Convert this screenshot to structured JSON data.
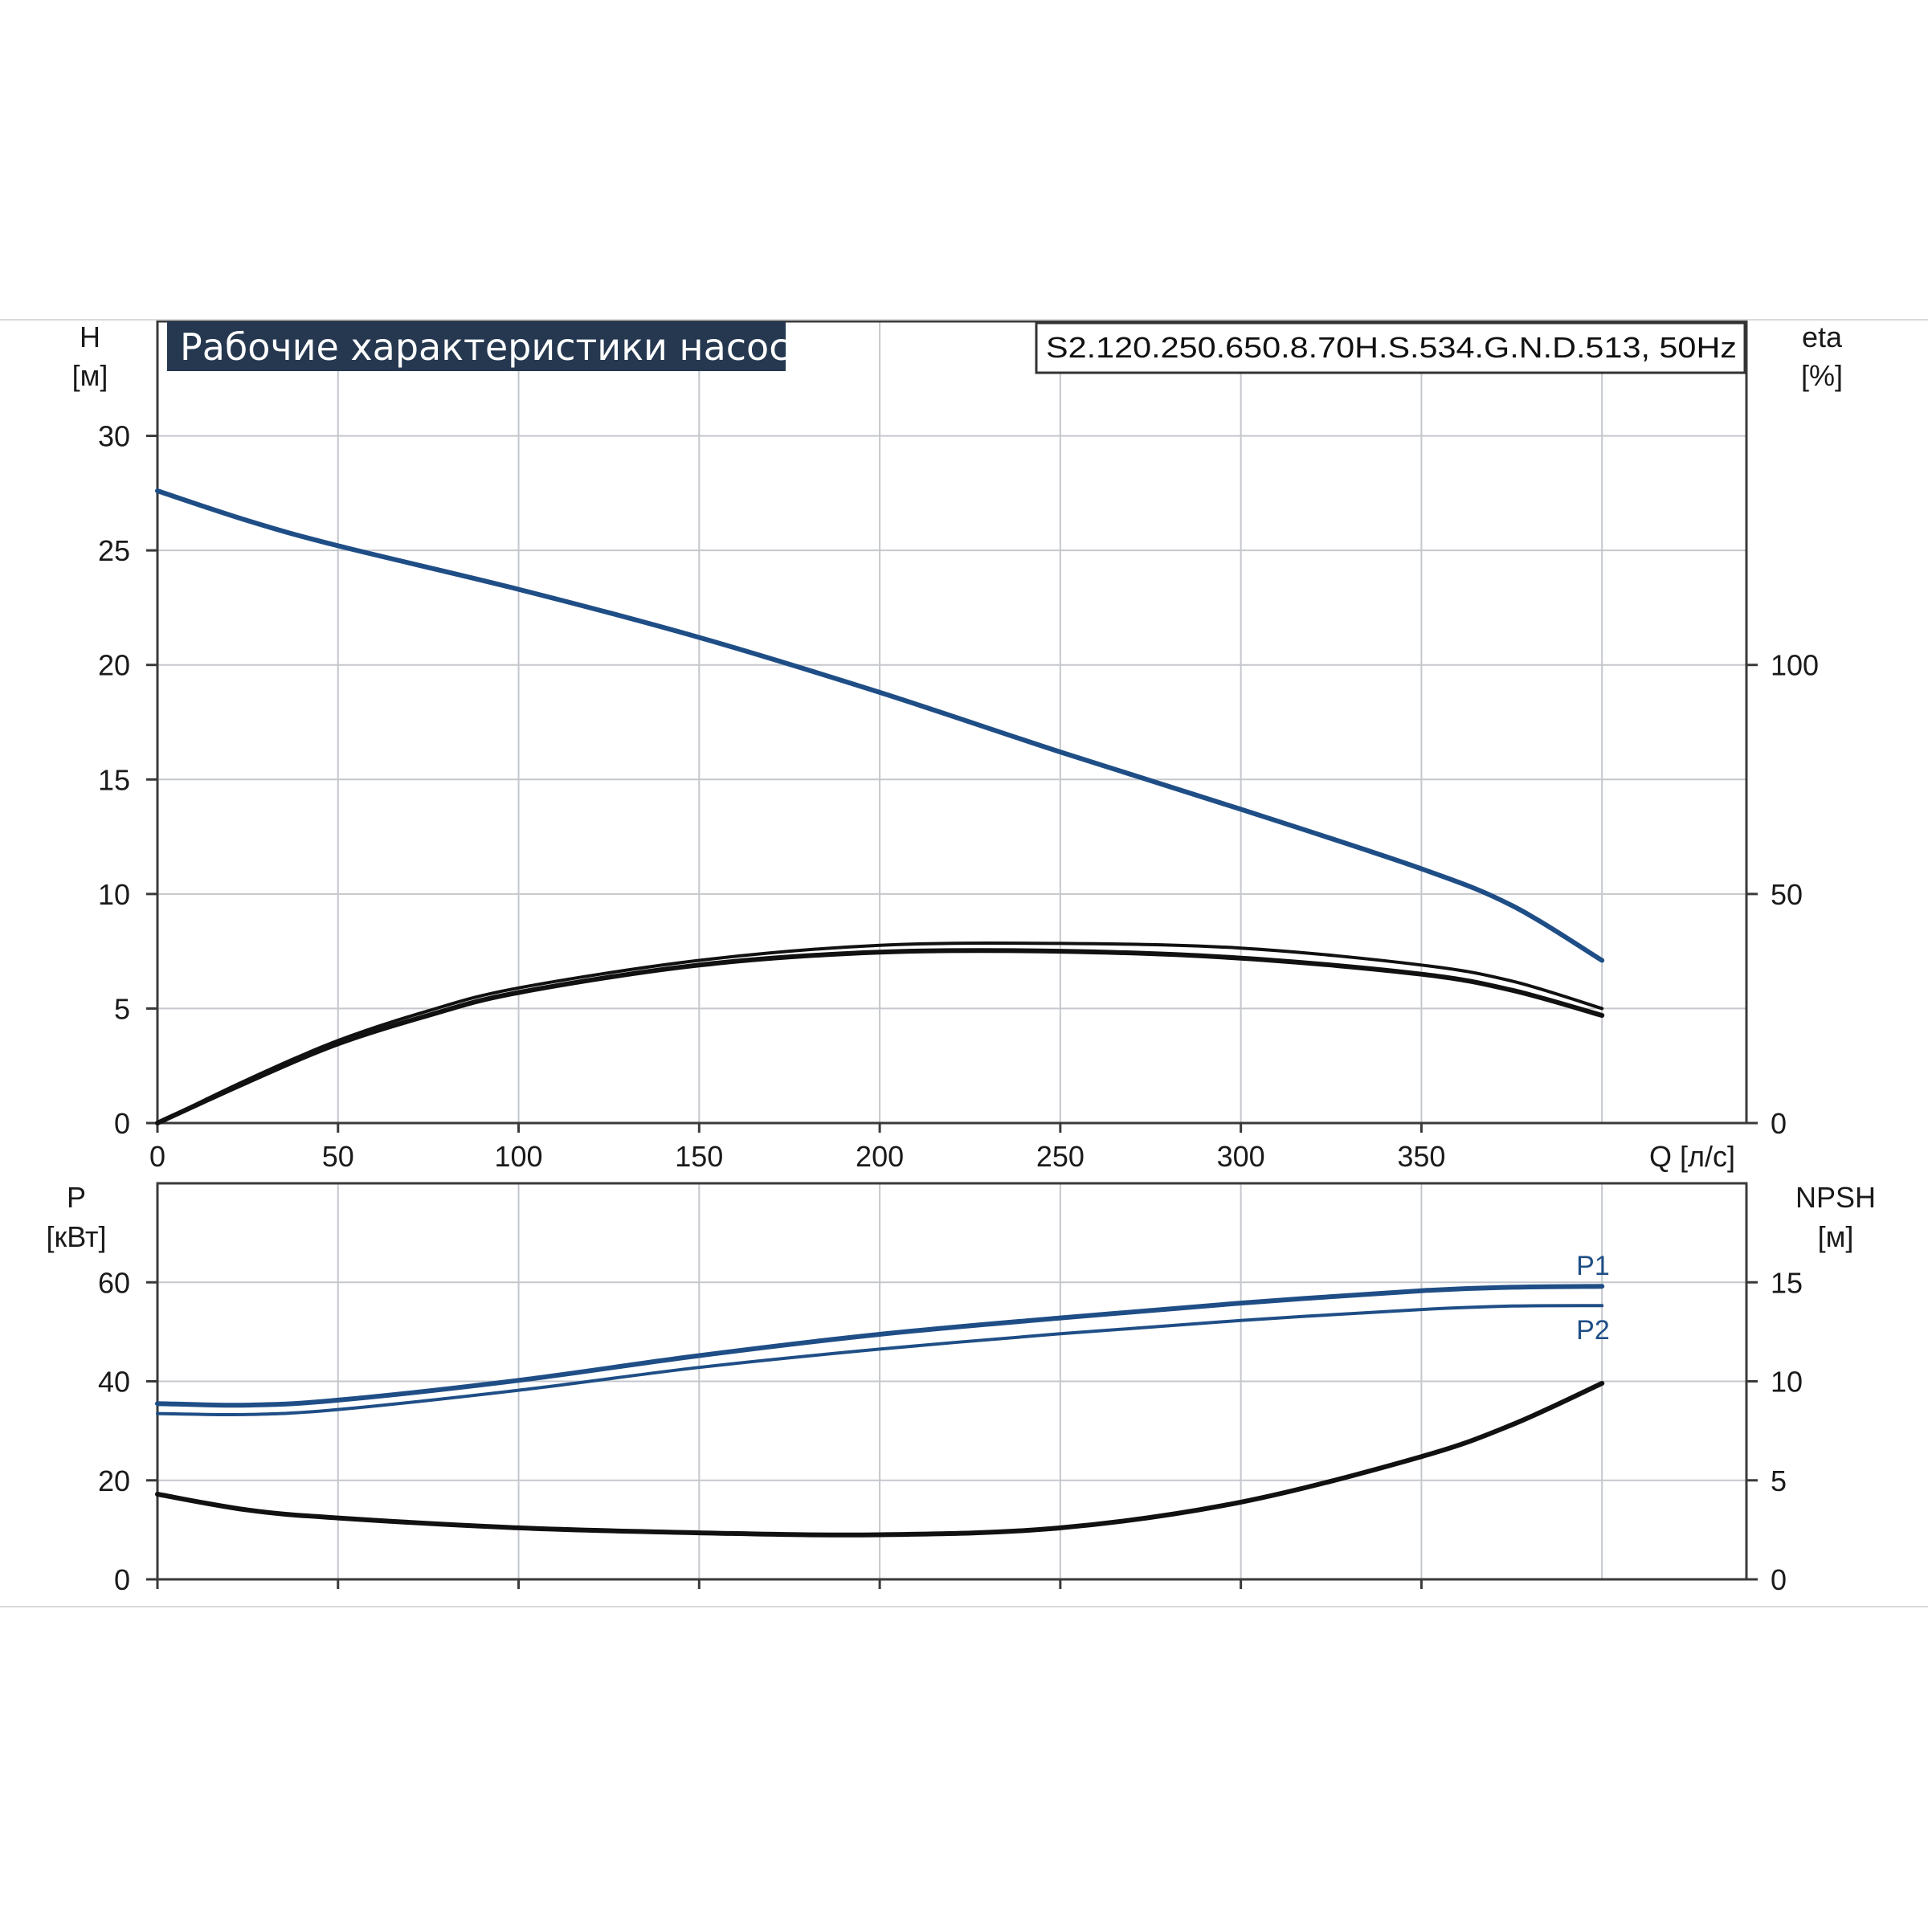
{
  "title": "Рабочие характеристики насоса",
  "model": "S2.120.250.650.8.70H.S.534.G.N.D.513, 50Hz",
  "colors": {
    "blue": "#1f4e86",
    "black": "#111111",
    "grid": "#c4c7cc",
    "title_bg": "#253850"
  },
  "top_chart": {
    "y_label": "H",
    "y_unit": "[м]",
    "y2_label": "eta",
    "y2_unit": "[%]",
    "x_label": "Q [л/с]"
  },
  "bottom_chart": {
    "y_label": "P",
    "y_unit": "[кВт]",
    "y2_label": "NPSH",
    "y2_unit": "[м]"
  },
  "chart_data": [
    {
      "type": "line",
      "x_label": "Q [л/с]",
      "xlim": [
        0,
        440
      ],
      "x_ticks": [
        0,
        50,
        100,
        150,
        200,
        250,
        300,
        350
      ],
      "ylim": [
        0,
        35
      ],
      "y_ticks": [
        0,
        5,
        10,
        15,
        20,
        25,
        30
      ],
      "y_label": "H [м]",
      "y2lim": [
        0,
        175
      ],
      "y2_ticks": [
        0,
        50,
        100
      ],
      "y2_label": "eta [%]",
      "grid": true,
      "series": [
        {
          "axis": "y",
          "color": "#1f4e86",
          "points": [
            [
              0,
              27.6
            ],
            [
              25,
              26.3
            ],
            [
              50,
              25.2
            ],
            [
              100,
              23.3
            ],
            [
              150,
              21.2
            ],
            [
              200,
              18.8
            ],
            [
              250,
              16.2
            ],
            [
              300,
              13.7
            ],
            [
              350,
              11.1
            ],
            [
              375,
              9.5
            ],
            [
              400,
              7.1
            ]
          ]
        },
        {
          "axis": "y2",
          "color": "#111111",
          "points": [
            [
              0,
              0
            ],
            [
              25,
              9.5
            ],
            [
              50,
              18
            ],
            [
              75,
              24.5
            ],
            [
              100,
              29.5
            ],
            [
              150,
              35.5
            ],
            [
              200,
              38.8
            ],
            [
              250,
              39.2
            ],
            [
              300,
              38.2
            ],
            [
              350,
              34.5
            ],
            [
              375,
              31
            ],
            [
              400,
              25
            ]
          ]
        },
        {
          "axis": "y2",
          "color": "#111111",
          "points": [
            [
              0,
              0
            ],
            [
              25,
              9
            ],
            [
              50,
              17.3
            ],
            [
              75,
              23.5
            ],
            [
              100,
              28.5
            ],
            [
              150,
              34.5
            ],
            [
              200,
              37.3
            ],
            [
              250,
              37.5
            ],
            [
              300,
              36
            ],
            [
              350,
              32.5
            ],
            [
              375,
              29
            ],
            [
              400,
              23.5
            ]
          ]
        }
      ]
    },
    {
      "type": "line",
      "xlim": [
        0,
        440
      ],
      "x_ticks": [
        0,
        50,
        100,
        150,
        200,
        250,
        300,
        350
      ],
      "ylim": [
        0,
        80
      ],
      "y_ticks": [
        0,
        20,
        40,
        60
      ],
      "y_label": "P [кВт]",
      "y2lim": [
        0,
        20
      ],
      "y2_ticks": [
        0,
        5,
        10,
        15
      ],
      "y2_label": "NPSH [м]",
      "grid": true,
      "series": [
        {
          "name": "P1",
          "axis": "y",
          "color": "#1f4e86",
          "points": [
            [
              0,
              35.5
            ],
            [
              25,
              35.2
            ],
            [
              50,
              36.2
            ],
            [
              100,
              40.2
            ],
            [
              150,
              45.2
            ],
            [
              200,
              49.5
            ],
            [
              250,
              52.8
            ],
            [
              300,
              55.8
            ],
            [
              350,
              58.3
            ],
            [
              375,
              59
            ],
            [
              400,
              59.2
            ]
          ]
        },
        {
          "name": "P2",
          "axis": "y",
          "color": "#1f4e86",
          "points": [
            [
              0,
              33.5
            ],
            [
              25,
              33.3
            ],
            [
              50,
              34.3
            ],
            [
              100,
              38.2
            ],
            [
              150,
              42.8
            ],
            [
              200,
              46.5
            ],
            [
              250,
              49.6
            ],
            [
              300,
              52.3
            ],
            [
              350,
              54.5
            ],
            [
              375,
              55.2
            ],
            [
              400,
              55.3
            ]
          ]
        },
        {
          "axis": "y2",
          "color": "#111111",
          "points": [
            [
              0,
              4.3
            ],
            [
              25,
              3.5
            ],
            [
              50,
              3.1
            ],
            [
              100,
              2.6
            ],
            [
              150,
              2.35
            ],
            [
              200,
              2.25
            ],
            [
              250,
              2.6
            ],
            [
              300,
              3.9
            ],
            [
              350,
              6.2
            ],
            [
              375,
              7.8
            ],
            [
              400,
              9.9
            ]
          ]
        }
      ]
    }
  ]
}
